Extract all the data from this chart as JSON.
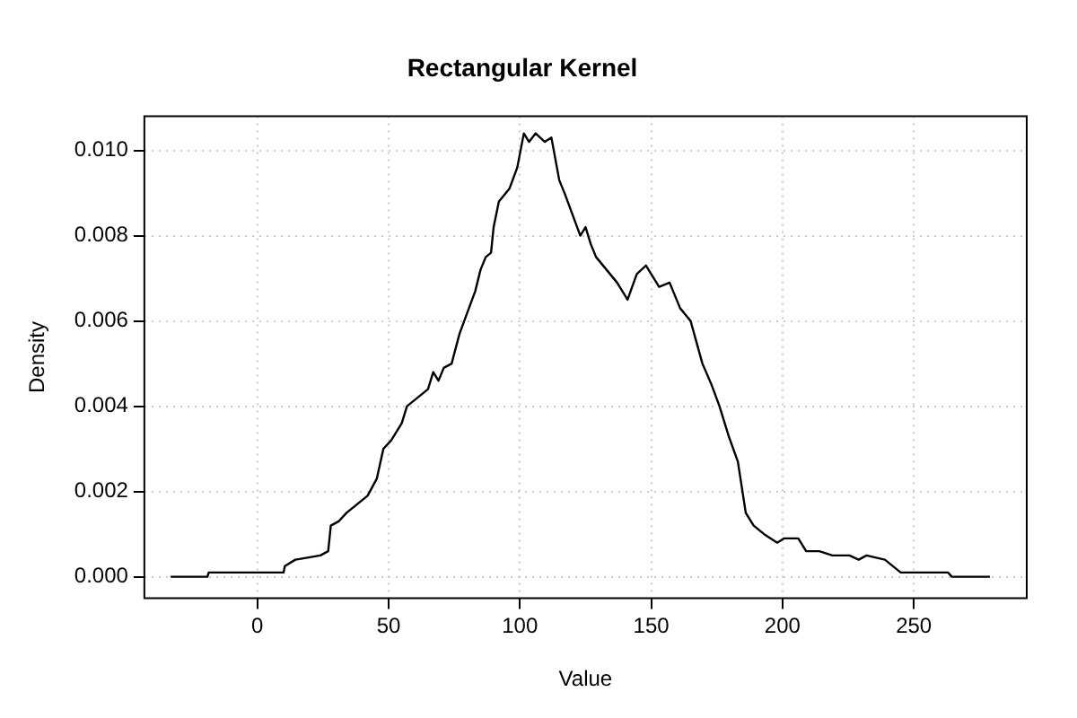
{
  "chart_data": {
    "type": "line",
    "title": "Rectangular Kernel",
    "xlabel": "Value",
    "ylabel": "Density",
    "xlim": [
      -43,
      293
    ],
    "xticks": [
      0,
      50,
      100,
      150,
      200,
      250
    ],
    "ylim": [
      -0.0005,
      0.0108
    ],
    "yticks": [
      {
        "value": 0,
        "label": "0.000"
      },
      {
        "value": 0.002,
        "label": "0.002"
      },
      {
        "value": 0.004,
        "label": "0.004"
      },
      {
        "value": 0.006,
        "label": "0.006"
      },
      {
        "value": 0.008,
        "label": "0.008"
      },
      {
        "value": 0.01,
        "label": "0.010"
      }
    ],
    "grid": true,
    "legend": false,
    "marker": "none",
    "line_style": "solid",
    "series": [
      {
        "color": "#000000",
        "x": [
          -33,
          -19,
          -18.5,
          10,
          10.5,
          14.5,
          24,
          27,
          28,
          31,
          34,
          38,
          42,
          45.5,
          48,
          51,
          55,
          57,
          61,
          65,
          67,
          69,
          71,
          74,
          77,
          80,
          83,
          85,
          87,
          89,
          90,
          92,
          96,
          99,
          101.5,
          103.5,
          106,
          109.5,
          112,
          115,
          117,
          120,
          123,
          125,
          127,
          129,
          133,
          137,
          141,
          144.5,
          148,
          150,
          153,
          157,
          161,
          165,
          169.5,
          173,
          176,
          179.5,
          183,
          186,
          189,
          193,
          198,
          200.5,
          206,
          209,
          214,
          219,
          225.5,
          229,
          232,
          239,
          243,
          245,
          263,
          264.5,
          279
        ],
        "values": [
          0,
          0,
          0.0001,
          0.0001,
          0.00025,
          0.0004,
          0.0005,
          0.0006,
          0.0012,
          0.0013,
          0.0015,
          0.0017,
          0.0019,
          0.0023,
          0.003,
          0.0032,
          0.0036,
          0.004,
          0.0042,
          0.0044,
          0.0048,
          0.0046,
          0.0049,
          0.005,
          0.0057,
          0.0062,
          0.0067,
          0.0072,
          0.0075,
          0.0076,
          0.0082,
          0.0088,
          0.0091,
          0.0096,
          0.0104,
          0.0102,
          0.0104,
          0.0102,
          0.0103,
          0.0093,
          0.009,
          0.0085,
          0.008,
          0.0082,
          0.0078,
          0.0075,
          0.0072,
          0.0069,
          0.0065,
          0.0071,
          0.0073,
          0.0071,
          0.0068,
          0.0069,
          0.0063,
          0.006,
          0.005,
          0.0045,
          0.004,
          0.0033,
          0.0027,
          0.0015,
          0.0012,
          0.001,
          0.0008,
          0.0009,
          0.0009,
          0.0006,
          0.0006,
          0.0005,
          0.0005,
          0.0004,
          0.0005,
          0.0004,
          0.0002,
          0.0001,
          0.0001,
          0,
          0
        ]
      }
    ]
  }
}
